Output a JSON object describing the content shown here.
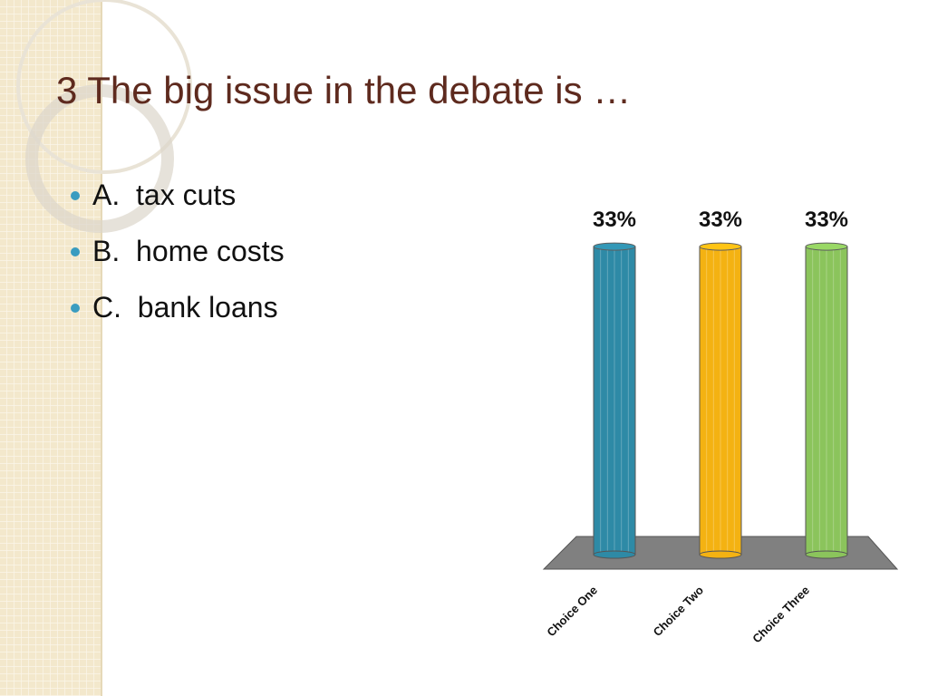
{
  "title": "3 The big issue in the debate is …",
  "bullets": [
    "A.  tax cuts",
    "B.  home costs",
    "C.  bank loans"
  ],
  "chart_data": {
    "type": "bar",
    "categories": [
      "Choice One",
      "Choice Two",
      "Choice Three"
    ],
    "values": [
      33,
      33,
      33
    ],
    "value_labels": [
      "33%",
      "33%",
      "33%"
    ],
    "colors": [
      "#2e8aa6",
      "#f4b212",
      "#8bc45c"
    ]
  }
}
